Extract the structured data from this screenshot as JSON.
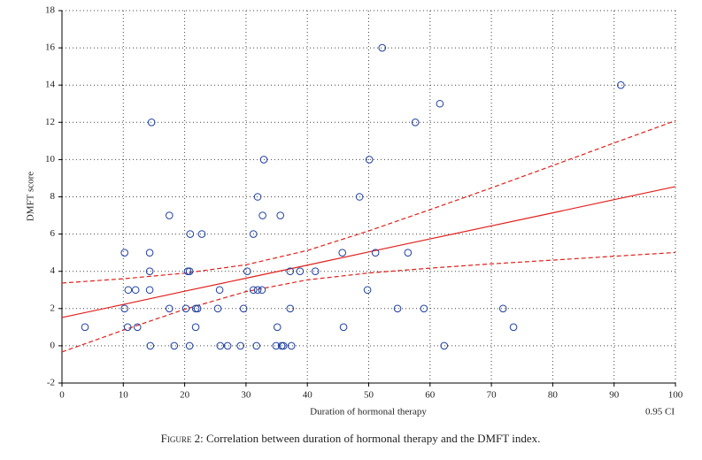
{
  "chart_data": {
    "type": "scatter",
    "x_label": "Duration of hormonal therapy",
    "y_label": "DMFT score",
    "ci_label": "0.95 CI",
    "caption_label": "Figure 2:",
    "caption": "Correlation between duration of hormonal therapy and the DMFT index.",
    "xlim": [
      0,
      100
    ],
    "ylim": [
      -2,
      18
    ],
    "xticks": [
      0,
      10,
      20,
      30,
      40,
      50,
      60,
      70,
      80,
      90,
      100
    ],
    "yticks": [
      -2,
      0,
      2,
      4,
      6,
      8,
      10,
      12,
      14,
      16,
      18
    ],
    "grid": true,
    "point_color": "#1f3fa0",
    "fit_color": "#e0201c",
    "x": [
      3.75,
      10.2,
      10.2,
      10.8,
      10.7,
      12.0,
      12.3,
      14.3,
      14.3,
      14.3,
      14.4,
      14.6,
      17.5,
      17.5,
      18.3,
      20.2,
      20.5,
      20.8,
      20.9,
      20.8,
      21.8,
      22.1,
      21.8,
      22.8,
      25.4,
      25.7,
      25.8,
      27.0,
      29.1,
      29.6,
      30.2,
      31.2,
      31.2,
      31.9,
      31.9,
      31.7,
      32.6,
      32.7,
      32.9,
      35.1,
      34.9,
      35.6,
      35.8,
      36.1,
      37.2,
      37.2,
      37.4,
      38.8,
      41.3,
      45.7,
      45.9,
      48.5,
      49.8,
      50.1,
      51.1,
      52.2,
      54.7,
      56.4,
      57.6,
      59.0,
      61.6,
      62.3,
      71.9,
      73.6,
      91.1
    ],
    "y": [
      1,
      5,
      2,
      3,
      1,
      3,
      1,
      5,
      4,
      3,
      0,
      12,
      7,
      2,
      0,
      2,
      4,
      4,
      6,
      0,
      2,
      2,
      1,
      6,
      2,
      3,
      0,
      0,
      0,
      2,
      4,
      6,
      3,
      3,
      8,
      0,
      3,
      7,
      10,
      1,
      0,
      7,
      0,
      0,
      2,
      4,
      0,
      4,
      4,
      5,
      1,
      8,
      3,
      10,
      5,
      16,
      2,
      5,
      12,
      2,
      13,
      0,
      2,
      1,
      14
    ],
    "fit": {
      "x": [
        0,
        10,
        20,
        30,
        40,
        50,
        60,
        70,
        80,
        90,
        100
      ],
      "y": [
        1.52,
        2.22,
        2.93,
        3.63,
        4.33,
        5.04,
        5.74,
        6.44,
        7.14,
        7.85,
        8.55
      ]
    },
    "ci_upper": {
      "x": [
        0,
        10,
        20,
        30,
        40,
        50,
        60,
        70,
        80,
        90,
        100
      ],
      "y": [
        3.37,
        3.6,
        3.9,
        4.35,
        5.12,
        6.17,
        7.31,
        8.48,
        9.68,
        10.89,
        12.09
      ]
    },
    "ci_lower": {
      "x": [
        0,
        10,
        20,
        30,
        40,
        50,
        60,
        70,
        80,
        90,
        100
      ],
      "y": [
        -0.33,
        0.84,
        1.96,
        2.91,
        3.54,
        3.91,
        4.17,
        4.4,
        4.6,
        4.81,
        5.01
      ]
    }
  }
}
